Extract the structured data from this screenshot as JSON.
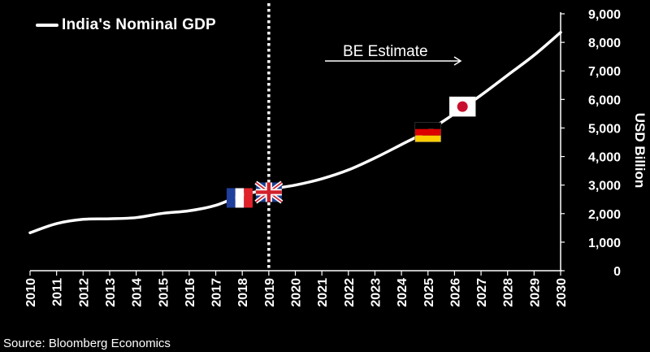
{
  "chart_data": {
    "type": "line",
    "title": "",
    "ylabel": "USD Billion",
    "xlabel": "",
    "ylim": [
      0,
      9000
    ],
    "xlim": [
      2010,
      2030
    ],
    "x": [
      2010,
      2011,
      2012,
      2013,
      2014,
      2015,
      2016,
      2017,
      2018,
      2019,
      2020,
      2021,
      2022,
      2023,
      2024,
      2025,
      2026,
      2027,
      2028,
      2029,
      2030
    ],
    "y_ticks": [
      "0",
      "1,000",
      "2,000",
      "3,000",
      "4,000",
      "5,000",
      "6,000",
      "7,000",
      "8,000",
      "9,000"
    ],
    "y_tick_values": [
      0,
      1000,
      2000,
      3000,
      4000,
      5000,
      6000,
      7000,
      8000,
      9000
    ],
    "series": [
      {
        "name": "India's Nominal GDP",
        "color": "#ffffff",
        "values": [
          1330,
          1650,
          1800,
          1820,
          1860,
          2010,
          2100,
          2290,
          2650,
          2850,
          3000,
          3220,
          3530,
          3950,
          4420,
          4900,
          5500,
          6150,
          6850,
          7550,
          8350
        ]
      }
    ],
    "reference_line": {
      "x": 2019,
      "style": "dotted",
      "color": "#ffffff"
    },
    "annotation": {
      "text": "BE Estimate",
      "arrow": "right"
    },
    "markers": [
      {
        "icon": "france-flag-icon",
        "x": 2017.9,
        "y": 2550
      },
      {
        "icon": "uk-flag-icon",
        "x": 2019.0,
        "y": 2750
      },
      {
        "icon": "germany-flag-icon",
        "x": 2025.0,
        "y": 4850
      },
      {
        "icon": "japan-flag-icon",
        "x": 2026.3,
        "y": 5750
      }
    ],
    "grid": false,
    "legend_position": "top-left"
  },
  "source": "Source: Bloomberg Economics",
  "colors": {
    "background": "#000000",
    "line": "#ffffff",
    "france_blue": "#1f3f9c",
    "france_red": "#e1222b",
    "germany_red": "#dd0000",
    "germany_gold": "#ffce00",
    "japan_red": "#c8102e",
    "uk_blue": "#1f3f8f",
    "uk_red": "#d0202b"
  }
}
